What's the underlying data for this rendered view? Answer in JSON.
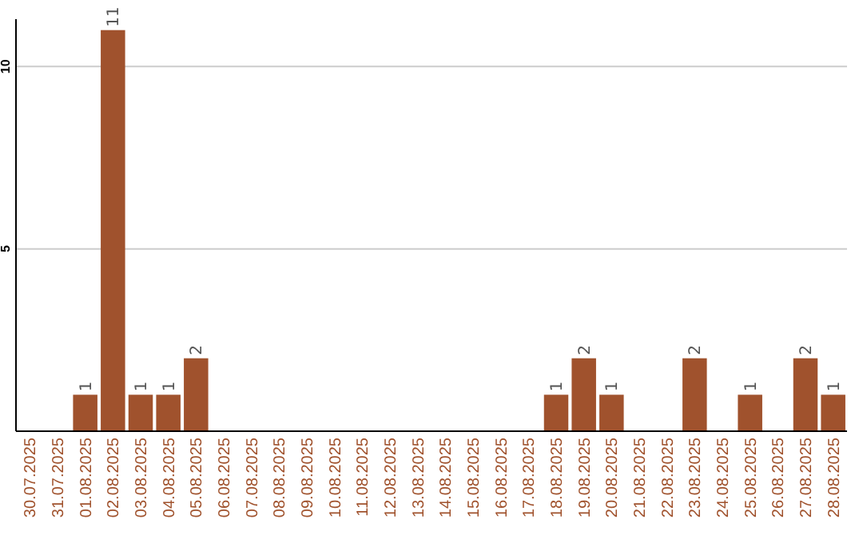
{
  "chart_data": {
    "type": "bar",
    "categories": [
      "30.07.2025",
      "31.07.2025",
      "01.08.2025",
      "02.08.2025",
      "03.08.2025",
      "04.08.2025",
      "05.08.2025",
      "06.08.2025",
      "07.08.2025",
      "08.08.2025",
      "09.08.2025",
      "10.08.2025",
      "11.08.2025",
      "12.08.2025",
      "13.08.2025",
      "14.08.2025",
      "15.08.2025",
      "16.08.2025",
      "17.08.2025",
      "18.08.2025",
      "19.08.2025",
      "20.08.2025",
      "21.08.2025",
      "22.08.2025",
      "23.08.2025",
      "24.08.2025",
      "25.08.2025",
      "26.08.2025",
      "27.08.2025",
      "28.08.2025"
    ],
    "values": [
      0,
      0,
      1,
      11,
      1,
      1,
      2,
      0,
      0,
      0,
      0,
      0,
      0,
      0,
      0,
      0,
      0,
      0,
      0,
      1,
      2,
      1,
      0,
      0,
      2,
      0,
      1,
      0,
      2,
      1
    ],
    "value_labels": [
      null,
      null,
      "1",
      "11",
      "1",
      "1",
      "2",
      null,
      null,
      null,
      null,
      null,
      null,
      null,
      null,
      null,
      null,
      null,
      null,
      "1",
      "2",
      "1",
      null,
      null,
      "2",
      null,
      "1",
      null,
      "2",
      "1"
    ],
    "color": "#a0522d",
    "ylim": [
      0,
      11.3
    ],
    "yticks": [
      5,
      10
    ],
    "grid": "y"
  }
}
